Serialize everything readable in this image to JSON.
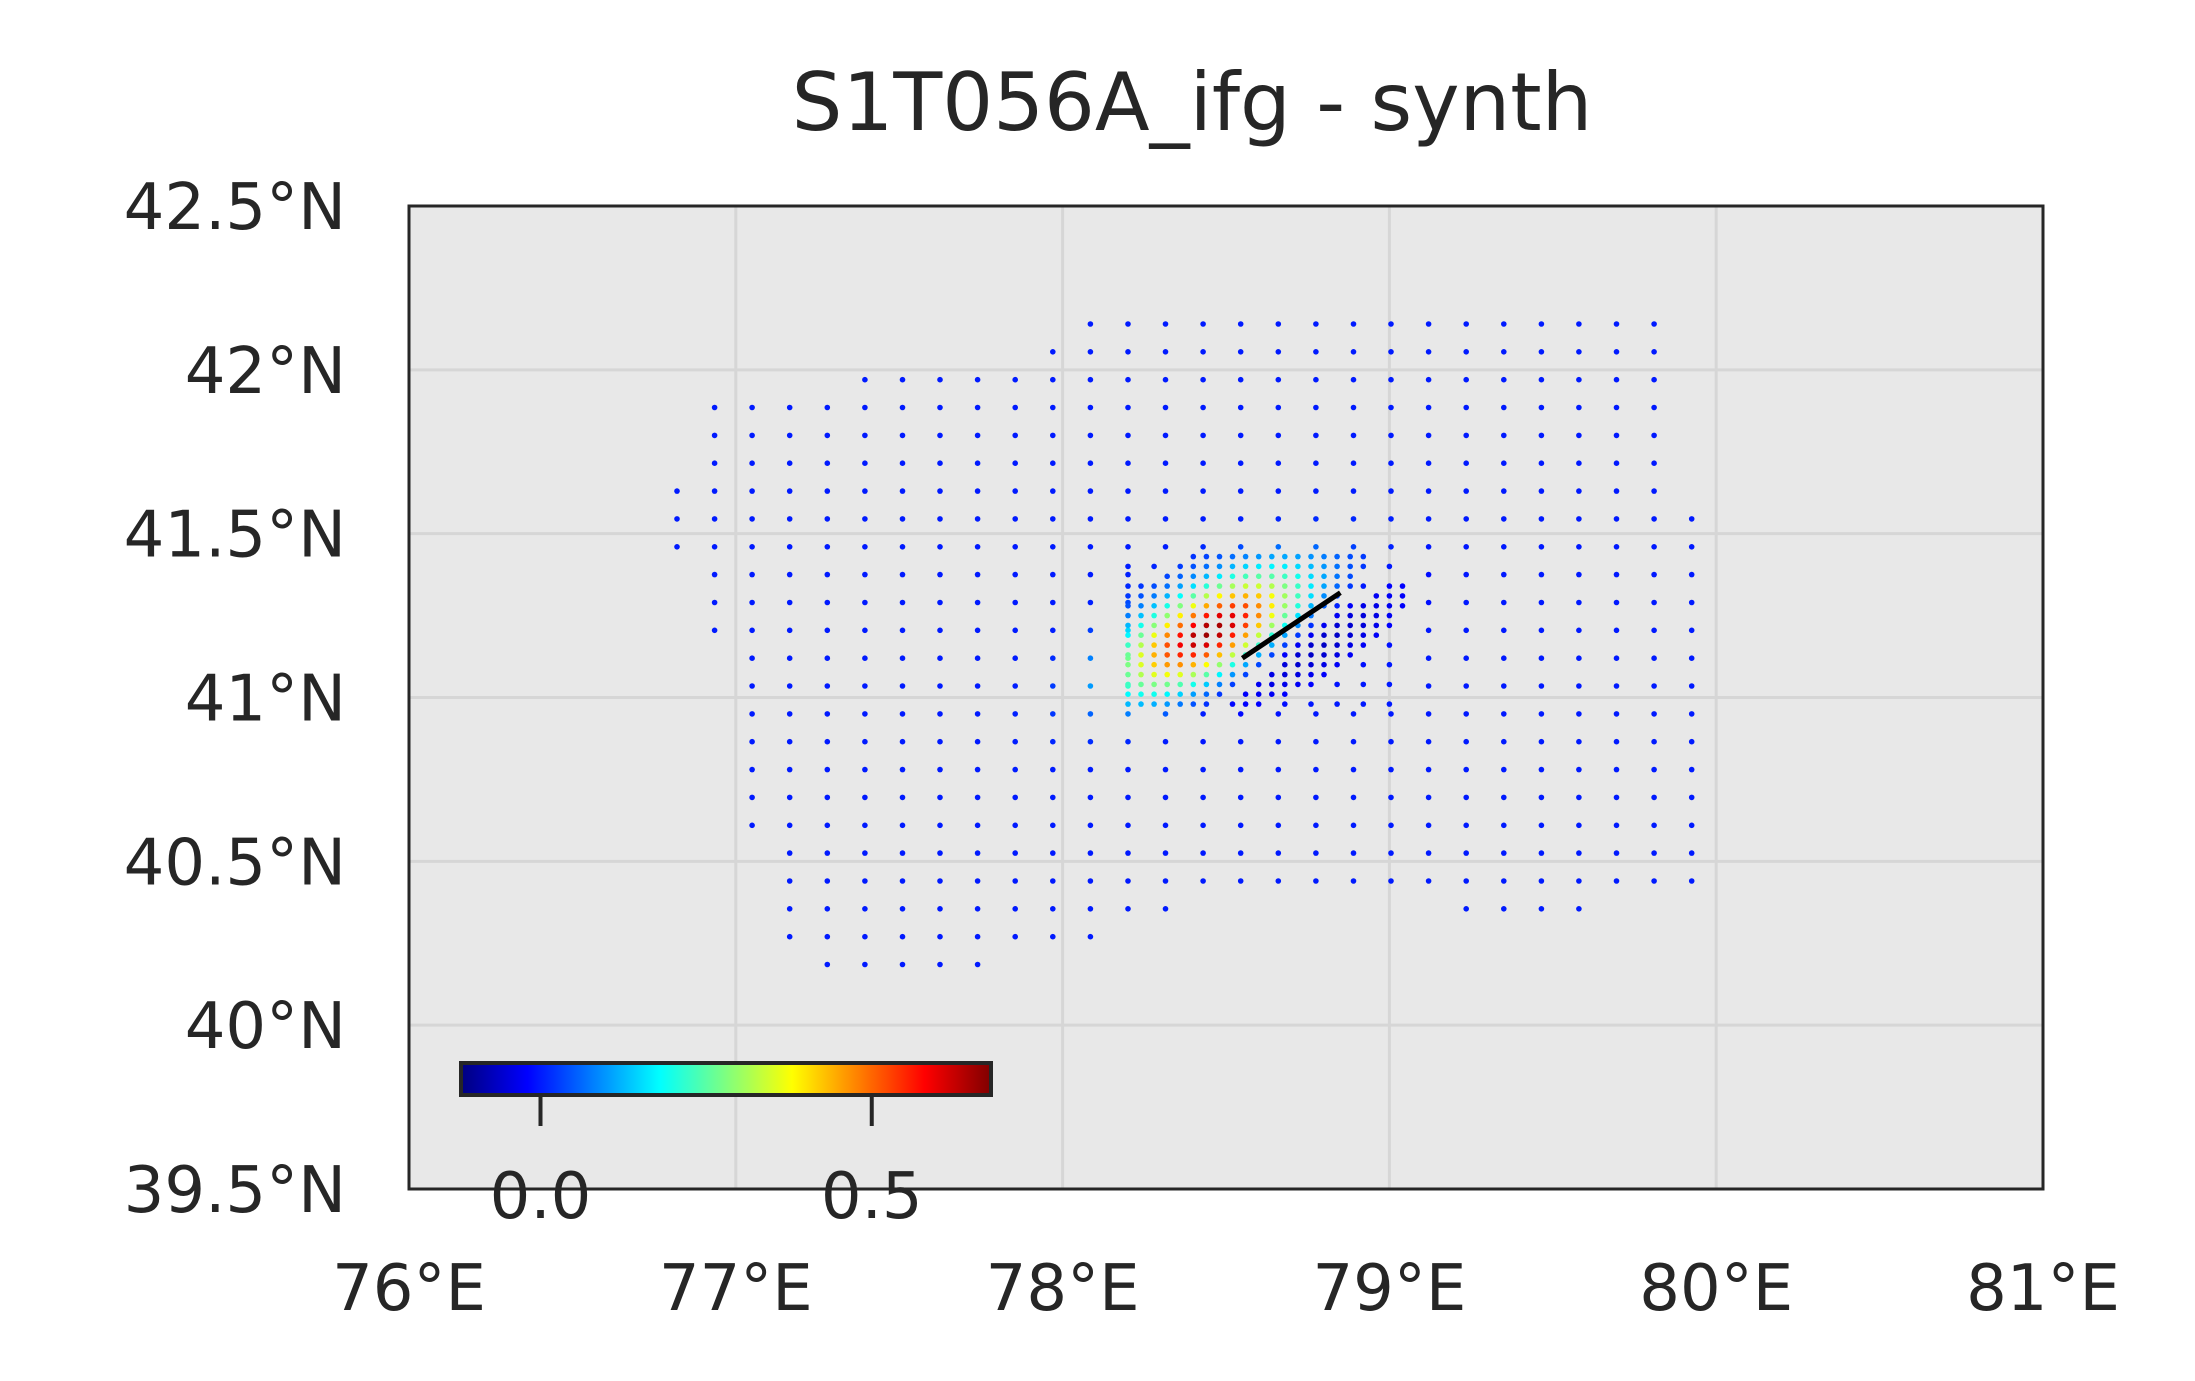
{
  "chart_data": {
    "type": "scatter",
    "title": "S1T056A_ifg - synth",
    "xlim": [
      76,
      81
    ],
    "ylim": [
      39.5,
      42.5
    ],
    "x_ticks": [
      {
        "value": 76,
        "label": "76°E"
      },
      {
        "value": 77,
        "label": "77°E"
      },
      {
        "value": 78,
        "label": "78°E"
      },
      {
        "value": 79,
        "label": "79°E"
      },
      {
        "value": 80,
        "label": "80°E"
      },
      {
        "value": 81,
        "label": "81°E"
      }
    ],
    "y_ticks": [
      {
        "value": 39.5,
        "label": "39.5°N"
      },
      {
        "value": 40,
        "label": "40°N"
      },
      {
        "value": 40.5,
        "label": "40.5°N"
      },
      {
        "value": 41,
        "label": "41°N"
      },
      {
        "value": 41.5,
        "label": "41.5°N"
      },
      {
        "value": 42,
        "label": "42°N"
      },
      {
        "value": 42.5,
        "label": "42.5°N"
      }
    ],
    "grid": true,
    "colormap": "jet",
    "colorbar": {
      "placement": "bottom-left",
      "range": [
        -0.12,
        0.68
      ],
      "ticks": [
        {
          "value": 0.0,
          "label": "0.0"
        },
        {
          "value": 0.5,
          "label": "0.5"
        }
      ]
    },
    "background_color": "#e8e8e8",
    "point_color_base": "#0000ff",
    "fault_trace": {
      "x": [
        78.55,
        78.85
      ],
      "y": [
        41.12,
        41.32
      ],
      "color": "#000000"
    },
    "coverage_outline": {
      "x": [
        76.85,
        77.35,
        77.85,
        78.0,
        78.45,
        78.9,
        79.15,
        79.8,
        79.85,
        79.95,
        79.95,
        79.6,
        79.2,
        79.0,
        78.3,
        77.9,
        77.2,
        77.0,
        76.95,
        76.8
      ],
      "y": [
        41.9,
        41.97,
        42.0,
        42.15,
        42.2,
        42.2,
        42.15,
        42.2,
        42.0,
        41.45,
        40.4,
        40.35,
        40.33,
        40.4,
        40.35,
        40.2,
        40.1,
        40.7,
        41.1,
        41.5
      ]
    },
    "sampling": {
      "dlon": 0.115,
      "dlat": 0.085,
      "dense_dlon": 0.04,
      "dense_dlat": 0.03,
      "dense_region": {
        "lon": [
          78.2,
          79.05
        ],
        "lat": [
          40.98,
          41.45
        ]
      }
    },
    "anomaly": {
      "positive_peak": {
        "lon": 78.45,
        "lat": 41.2,
        "value": 0.66,
        "sigma_along": 0.17,
        "sigma_across": 0.08
      },
      "negative_lobe": {
        "lon": 78.72,
        "lat": 41.15,
        "value": -0.1,
        "sigma_along": 0.18,
        "sigma_across": 0.06
      },
      "strike_deg": 38
    }
  }
}
